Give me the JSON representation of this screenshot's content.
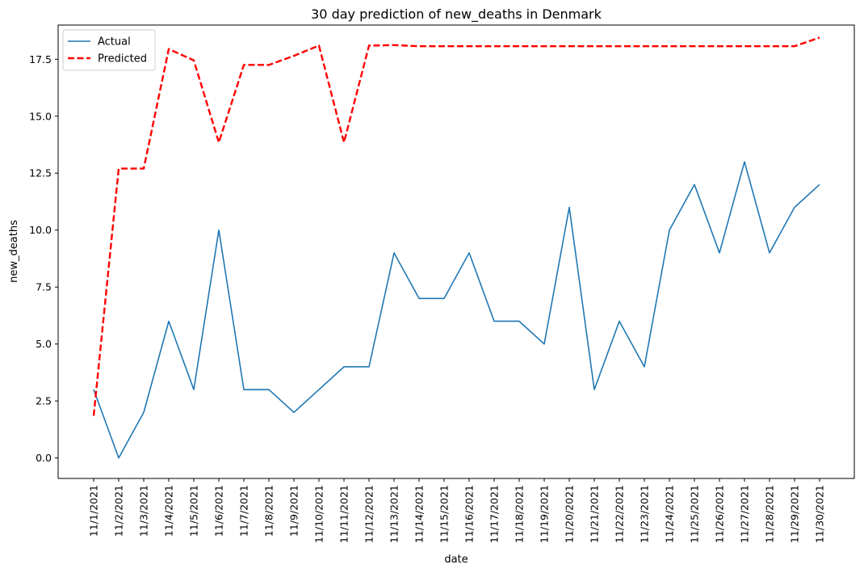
{
  "chart_data": {
    "type": "line",
    "title": "30 day prediction of new_deaths in Denmark",
    "xlabel": "date",
    "ylabel": "new_deaths",
    "categories": [
      "11/1/2021",
      "11/2/2021",
      "11/3/2021",
      "11/4/2021",
      "11/5/2021",
      "11/6/2021",
      "11/7/2021",
      "11/8/2021",
      "11/9/2021",
      "11/10/2021",
      "11/11/2021",
      "11/12/2021",
      "11/13/2021",
      "11/14/2021",
      "11/15/2021",
      "11/16/2021",
      "11/17/2021",
      "11/18/2021",
      "11/19/2021",
      "11/20/2021",
      "11/21/2021",
      "11/22/2021",
      "11/23/2021",
      "11/24/2021",
      "11/25/2021",
      "11/26/2021",
      "11/27/2021",
      "11/28/2021",
      "11/29/2021",
      "11/30/2021"
    ],
    "ylim": [
      -0.9,
      19.0
    ],
    "yticks": [
      0.0,
      2.5,
      5.0,
      7.5,
      10.0,
      12.5,
      15.0,
      17.5
    ],
    "ytick_labels": [
      "0.0",
      "2.5",
      "5.0",
      "7.5",
      "10.0",
      "12.5",
      "15.0",
      "17.5"
    ],
    "grid": false,
    "legend_position": "top-left",
    "series": [
      {
        "name": "Actual",
        "color": "#1f77b4",
        "style": "solid",
        "values": [
          3,
          0,
          2,
          6,
          3,
          10,
          3,
          3,
          2,
          3,
          4,
          4,
          9,
          7,
          7,
          9,
          6,
          6,
          5,
          11,
          3,
          6,
          4,
          10,
          12,
          9,
          13,
          9,
          11,
          12
        ]
      },
      {
        "name": "Predicted",
        "color": "#ff0000",
        "style": "dashed",
        "values": [
          1.85,
          12.7,
          12.7,
          17.95,
          17.45,
          13.85,
          17.25,
          17.25,
          17.65,
          18.1,
          13.85,
          18.1,
          18.12,
          18.07,
          18.07,
          18.07,
          18.07,
          18.07,
          18.07,
          18.07,
          18.07,
          18.07,
          18.07,
          18.07,
          18.07,
          18.07,
          18.07,
          18.07,
          18.07,
          18.45
        ]
      }
    ]
  }
}
